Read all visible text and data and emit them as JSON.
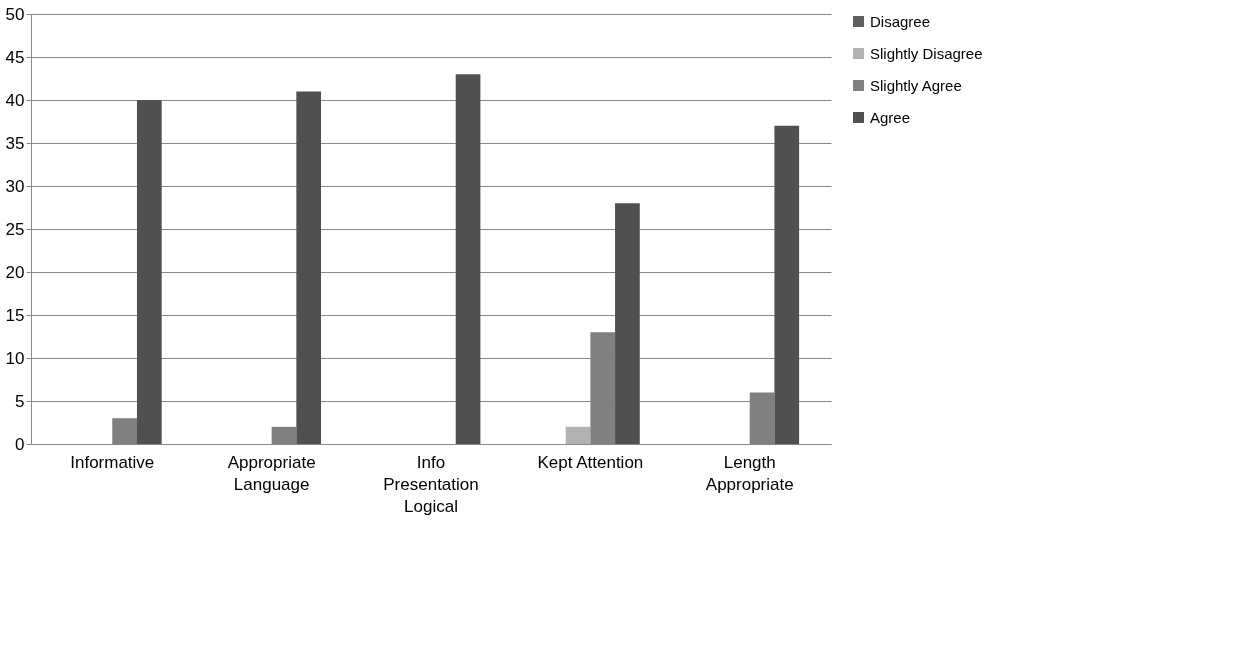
{
  "chart_data": {
    "type": "bar",
    "categories": [
      "Informative",
      "Appropriate Language",
      "Info Presentation Logical",
      "Kept Attention",
      "Length Appropriate"
    ],
    "series": [
      {
        "name": "Disagree",
        "color": "#5f5f5f",
        "values": [
          0,
          0,
          0,
          0,
          0
        ]
      },
      {
        "name": "Slightly Disagree",
        "color": "#b2b2b2",
        "values": [
          0,
          0,
          0,
          2,
          0
        ]
      },
      {
        "name": "Slightly Agree",
        "color": "#808080",
        "values": [
          3,
          2,
          0,
          13,
          6
        ]
      },
      {
        "name": "Agree",
        "color": "#505050",
        "values": [
          40,
          41,
          43,
          28,
          37
        ]
      }
    ],
    "ylim": [
      0,
      50
    ],
    "yticks": [
      0,
      5,
      10,
      15,
      20,
      25,
      30,
      35,
      40,
      45,
      50
    ],
    "grid": "y",
    "legend": "right"
  }
}
